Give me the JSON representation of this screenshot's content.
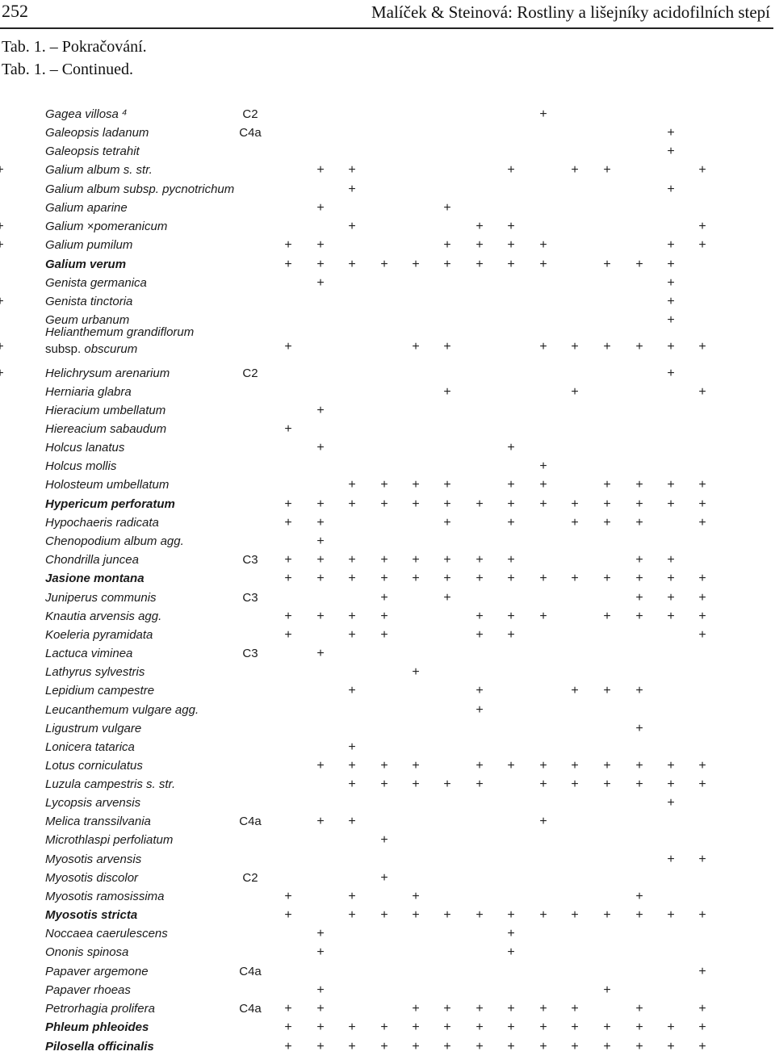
{
  "header": {
    "page_number": "252",
    "running_head": "Malíček & Steinová: Rostliny a lišejníky acidofilních stepí"
  },
  "captions": {
    "czech": "Tab. 1. – Pokračování.",
    "english": "Tab. 1. – Continued."
  },
  "rows": [
    {
      "name": "Gagea villosa ⁴",
      "cat": "C2",
      "marks": [
        8
      ]
    },
    {
      "name": "Galeopsis ladanum",
      "cat": "C4a",
      "marks": [
        12
      ]
    },
    {
      "name": "Galeopsis tetrahit",
      "cat": "",
      "marks": [
        12
      ]
    },
    {
      "name": "Galium album s. str.",
      "cat": "",
      "marks": [
        1,
        2,
        7,
        9,
        10,
        13,
        14
      ]
    },
    {
      "name": "Galium album subsp. pycnotrichum",
      "cat": "",
      "marks": [
        2,
        12
      ]
    },
    {
      "name": "Galium aparine",
      "cat": "",
      "marks": [
        1,
        5
      ]
    },
    {
      "name": "Galium ×pomeranicum",
      "cat": "",
      "marks": [
        2,
        6,
        7,
        13,
        14
      ]
    },
    {
      "name": "Galium pumilum",
      "cat": "",
      "marks": [
        0,
        1,
        5,
        6,
        7,
        8,
        12,
        13,
        14
      ]
    },
    {
      "name": "Galium verum",
      "cat": "",
      "bold": true,
      "marks": [
        0,
        1,
        2,
        3,
        4,
        5,
        6,
        7,
        8,
        10,
        11,
        12
      ]
    },
    {
      "name": "Genista germanica",
      "cat": "",
      "marks": [
        1,
        12
      ]
    },
    {
      "name": "Genista tinctoria",
      "cat": "",
      "marks": [
        12,
        14
      ]
    },
    {
      "name": "Geum urbanum",
      "cat": "",
      "marks": [
        12
      ]
    },
    {
      "name": "Helianthemum grandiflorum subsp. obscurum",
      "line1": "Helianthemum grandiflorum",
      "line2": "subsp. obscurum",
      "cat": "",
      "marks": [
        0,
        4,
        5,
        8,
        9,
        10,
        11,
        12,
        13,
        14
      ]
    },
    {
      "name": "Helichrysum arenarium",
      "cat": "C2",
      "marks": [
        12,
        14
      ]
    },
    {
      "name": "Herniaria glabra",
      "cat": "",
      "marks": [
        5,
        9,
        13
      ]
    },
    {
      "name": "Hieracium umbellatum",
      "cat": "",
      "marks": [
        1
      ]
    },
    {
      "name": "Hiereacium sabaudum",
      "cat": "",
      "marks": [
        0
      ]
    },
    {
      "name": "Holcus lanatus",
      "cat": "",
      "marks": [
        1,
        7
      ]
    },
    {
      "name": "Holcus mollis",
      "cat": "",
      "marks": [
        8
      ]
    },
    {
      "name": "Holosteum umbellatum",
      "cat": "",
      "marks": [
        2,
        3,
        4,
        5,
        7,
        8,
        10,
        11,
        12,
        13
      ]
    },
    {
      "name": "Hypericum perforatum",
      "cat": "",
      "bold": true,
      "marks": [
        0,
        1,
        2,
        3,
        4,
        5,
        6,
        7,
        8,
        9,
        10,
        11,
        12,
        13
      ]
    },
    {
      "name": "Hypochaeris radicata",
      "cat": "",
      "marks": [
        0,
        1,
        5,
        7,
        9,
        10,
        11,
        13
      ]
    },
    {
      "name": "Chenopodium album agg.",
      "cat": "",
      "marks": [
        1
      ]
    },
    {
      "name": "Chondrilla juncea",
      "cat": "C3",
      "marks": [
        0,
        1,
        2,
        3,
        4,
        5,
        6,
        7,
        11,
        12
      ]
    },
    {
      "name": "Jasione montana",
      "cat": "",
      "bold": true,
      "marks": [
        0,
        1,
        2,
        3,
        4,
        5,
        6,
        7,
        8,
        9,
        10,
        11,
        12,
        13
      ]
    },
    {
      "name": "Juniperus communis",
      "cat": "C3",
      "marks": [
        3,
        5,
        11,
        12,
        13
      ]
    },
    {
      "name": "Knautia arvensis agg.",
      "cat": "",
      "marks": [
        0,
        1,
        2,
        3,
        6,
        7,
        8,
        10,
        11,
        12,
        13
      ]
    },
    {
      "name": "Koeleria pyramidata",
      "cat": "",
      "marks": [
        0,
        2,
        3,
        6,
        7,
        13
      ]
    },
    {
      "name": "Lactuca viminea",
      "cat": "C3",
      "marks": [
        1
      ]
    },
    {
      "name": "Lathyrus sylvestris",
      "cat": "",
      "marks": [
        4
      ]
    },
    {
      "name": "Lepidium campestre",
      "cat": "",
      "marks": [
        2,
        6,
        9,
        10,
        11
      ]
    },
    {
      "name": "Leucanthemum vulgare agg.",
      "cat": "",
      "marks": [
        6
      ]
    },
    {
      "name": "Ligustrum vulgare",
      "cat": "",
      "marks": [
        11
      ]
    },
    {
      "name": "Lonicera tatarica",
      "cat": "",
      "marks": [
        2
      ]
    },
    {
      "name": "Lotus corniculatus",
      "cat": "",
      "marks": [
        1,
        2,
        3,
        4,
        6,
        7,
        8,
        9,
        10,
        11,
        12,
        13
      ]
    },
    {
      "name": "Luzula campestris s. str.",
      "cat": "",
      "marks": [
        2,
        3,
        4,
        5,
        6,
        8,
        9,
        10,
        11,
        12,
        13
      ]
    },
    {
      "name": "Lycopsis arvensis",
      "cat": "",
      "marks": [
        12
      ]
    },
    {
      "name": "Melica transsilvania",
      "cat": "C4a",
      "marks": [
        1,
        2,
        8
      ]
    },
    {
      "name": "Microthlaspi perfoliatum",
      "cat": "",
      "marks": [
        3
      ]
    },
    {
      "name": "Myosotis arvensis",
      "cat": "",
      "marks": [
        12,
        13
      ]
    },
    {
      "name": "Myosotis discolor",
      "cat": "C2",
      "marks": [
        3
      ]
    },
    {
      "name": "Myosotis ramosissima",
      "cat": "",
      "marks": [
        0,
        2,
        4,
        11
      ]
    },
    {
      "name": "Myosotis stricta",
      "cat": "",
      "bold": true,
      "marks": [
        0,
        2,
        3,
        4,
        5,
        6,
        7,
        8,
        9,
        10,
        11,
        12,
        13
      ]
    },
    {
      "name": "Noccaea caerulescens",
      "cat": "",
      "marks": [
        1,
        7
      ]
    },
    {
      "name": "Ononis spinosa",
      "cat": "",
      "marks": [
        1,
        7
      ]
    },
    {
      "name": "Papaver argemone",
      "cat": "C4a",
      "marks": [
        13
      ]
    },
    {
      "name": "Papaver rhoeas",
      "cat": "",
      "marks": [
        1,
        10
      ]
    },
    {
      "name": "Petrorhagia prolifera",
      "cat": "C4a",
      "marks": [
        0,
        1,
        4,
        5,
        6,
        7,
        8,
        9,
        11,
        13
      ]
    },
    {
      "name": "Phleum phleoides",
      "cat": "",
      "bold": true,
      "marks": [
        0,
        1,
        2,
        3,
        4,
        5,
        6,
        7,
        8,
        9,
        10,
        11,
        12,
        13
      ]
    },
    {
      "name": "Pilosella officinalis",
      "cat": "",
      "bold": true,
      "marks": [
        0,
        1,
        2,
        3,
        4,
        5,
        6,
        7,
        8,
        9,
        10,
        11,
        12,
        13
      ]
    }
  ]
}
